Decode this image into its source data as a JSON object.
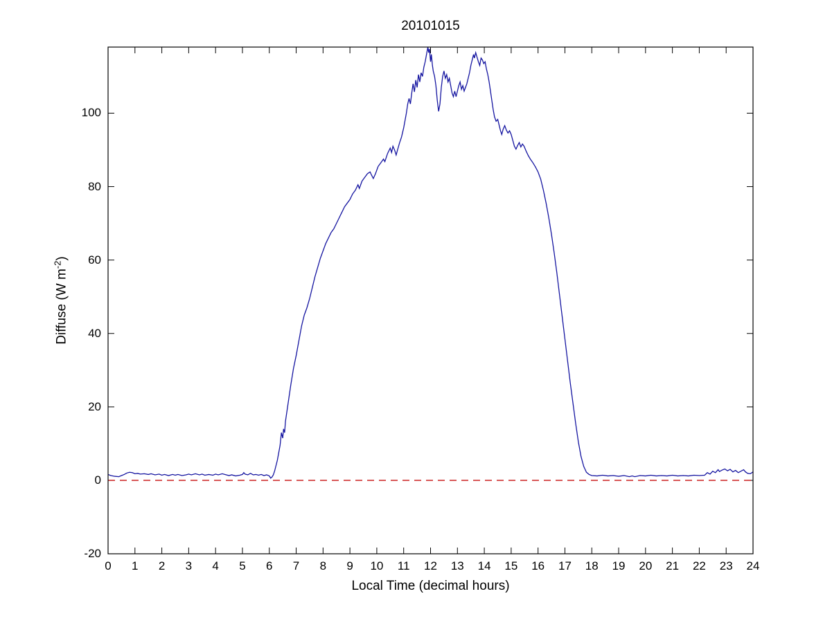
{
  "chart_data": {
    "type": "line",
    "title": "20101015",
    "xlabel": "Local Time (decimal hours)",
    "ylabel": {
      "prefix": "Diffuse (W m",
      "superscript": "-2",
      "suffix": ")"
    },
    "xlim": [
      0,
      24
    ],
    "ylim": [
      -20,
      118
    ],
    "xticks": [
      0,
      1,
      2,
      3,
      4,
      5,
      6,
      7,
      8,
      9,
      10,
      11,
      12,
      13,
      14,
      15,
      16,
      17,
      18,
      19,
      20,
      21,
      22,
      23,
      24
    ],
    "yticks": [
      -20,
      0,
      20,
      40,
      60,
      80,
      100
    ],
    "grid": false,
    "legend": null,
    "colors": {
      "axis": "#000000",
      "line": "#1414a0",
      "reference": "#cc2222"
    },
    "series": [
      {
        "name": "diffuse-irradiance",
        "color": "#1414a0",
        "style": "solid",
        "points": [
          [
            0,
            1.6
          ],
          [
            0.1,
            1.3
          ],
          [
            0.25,
            1.1
          ],
          [
            0.4,
            1.0
          ],
          [
            0.5,
            1.3
          ],
          [
            0.6,
            1.6
          ],
          [
            0.7,
            2.0
          ],
          [
            0.8,
            2.2
          ],
          [
            0.9,
            2.1
          ],
          [
            1.0,
            1.8
          ],
          [
            1.1,
            1.9
          ],
          [
            1.2,
            1.7
          ],
          [
            1.35,
            1.8
          ],
          [
            1.5,
            1.6
          ],
          [
            1.6,
            1.8
          ],
          [
            1.75,
            1.5
          ],
          [
            1.9,
            1.7
          ],
          [
            2.0,
            1.4
          ],
          [
            2.1,
            1.6
          ],
          [
            2.25,
            1.3
          ],
          [
            2.4,
            1.6
          ],
          [
            2.5,
            1.4
          ],
          [
            2.6,
            1.6
          ],
          [
            2.75,
            1.3
          ],
          [
            2.9,
            1.5
          ],
          [
            3.0,
            1.7
          ],
          [
            3.1,
            1.5
          ],
          [
            3.25,
            1.8
          ],
          [
            3.4,
            1.5
          ],
          [
            3.5,
            1.7
          ],
          [
            3.6,
            1.4
          ],
          [
            3.75,
            1.6
          ],
          [
            3.9,
            1.4
          ],
          [
            4.0,
            1.7
          ],
          [
            4.1,
            1.5
          ],
          [
            4.25,
            1.8
          ],
          [
            4.4,
            1.5
          ],
          [
            4.5,
            1.3
          ],
          [
            4.6,
            1.5
          ],
          [
            4.75,
            1.2
          ],
          [
            4.9,
            1.4
          ],
          [
            5.0,
            1.6
          ],
          [
            5.05,
            2.1
          ],
          [
            5.1,
            1.7
          ],
          [
            5.2,
            1.5
          ],
          [
            5.3,
            1.9
          ],
          [
            5.4,
            1.5
          ],
          [
            5.5,
            1.6
          ],
          [
            5.6,
            1.4
          ],
          [
            5.7,
            1.6
          ],
          [
            5.8,
            1.3
          ],
          [
            5.9,
            1.5
          ],
          [
            6.0,
            1.2
          ],
          [
            6.05,
            0.6
          ],
          [
            6.1,
            0.9
          ],
          [
            6.15,
            1.5
          ],
          [
            6.2,
            2.6
          ],
          [
            6.3,
            5.5
          ],
          [
            6.4,
            9.5
          ],
          [
            6.45,
            13
          ],
          [
            6.5,
            11.5
          ],
          [
            6.53,
            14
          ],
          [
            6.57,
            13
          ],
          [
            6.6,
            16
          ],
          [
            6.7,
            21
          ],
          [
            6.8,
            26
          ],
          [
            6.9,
            30.5
          ],
          [
            7.0,
            34
          ],
          [
            7.1,
            38
          ],
          [
            7.2,
            42
          ],
          [
            7.3,
            45
          ],
          [
            7.4,
            47
          ],
          [
            7.5,
            49.5
          ],
          [
            7.6,
            52.5
          ],
          [
            7.7,
            55.5
          ],
          [
            7.8,
            58
          ],
          [
            7.9,
            60.5
          ],
          [
            8.0,
            62.5
          ],
          [
            8.1,
            64.5
          ],
          [
            8.2,
            66
          ],
          [
            8.3,
            67.5
          ],
          [
            8.4,
            68.5
          ],
          [
            8.5,
            70
          ],
          [
            8.6,
            71.5
          ],
          [
            8.7,
            73
          ],
          [
            8.8,
            74.5
          ],
          [
            8.9,
            75.5
          ],
          [
            9.0,
            76.5
          ],
          [
            9.1,
            78
          ],
          [
            9.2,
            79
          ],
          [
            9.3,
            80.5
          ],
          [
            9.35,
            79.5
          ],
          [
            9.45,
            81.5
          ],
          [
            9.55,
            82.5
          ],
          [
            9.65,
            83.5
          ],
          [
            9.75,
            84
          ],
          [
            9.8,
            83.2
          ],
          [
            9.87,
            82.2
          ],
          [
            9.95,
            83.5
          ],
          [
            10.05,
            85.5
          ],
          [
            10.15,
            86.5
          ],
          [
            10.25,
            87.5
          ],
          [
            10.3,
            86.8
          ],
          [
            10.4,
            89
          ],
          [
            10.5,
            90.5
          ],
          [
            10.55,
            89.3
          ],
          [
            10.6,
            91
          ],
          [
            10.67,
            89.8
          ],
          [
            10.72,
            88.6
          ],
          [
            10.78,
            90.2
          ],
          [
            10.85,
            92
          ],
          [
            10.92,
            93.5
          ],
          [
            11.0,
            96
          ],
          [
            11.05,
            98
          ],
          [
            11.1,
            100
          ],
          [
            11.15,
            102.5
          ],
          [
            11.2,
            104
          ],
          [
            11.25,
            102.5
          ],
          [
            11.3,
            105.5
          ],
          [
            11.35,
            108
          ],
          [
            11.4,
            105.8
          ],
          [
            11.45,
            109
          ],
          [
            11.5,
            107
          ],
          [
            11.55,
            110.5
          ],
          [
            11.6,
            108.5
          ],
          [
            11.65,
            111
          ],
          [
            11.7,
            110
          ],
          [
            11.75,
            112.5
          ],
          [
            11.8,
            114
          ],
          [
            11.85,
            116
          ],
          [
            11.9,
            118
          ],
          [
            11.93,
            116.5
          ],
          [
            11.96,
            117.5
          ],
          [
            12.0,
            114
          ],
          [
            12.03,
            116
          ],
          [
            12.07,
            113
          ],
          [
            12.1,
            111.5
          ],
          [
            12.15,
            110
          ],
          [
            12.2,
            107.5
          ],
          [
            12.25,
            103.5
          ],
          [
            12.3,
            100.5
          ],
          [
            12.35,
            102.5
          ],
          [
            12.4,
            107
          ],
          [
            12.45,
            110
          ],
          [
            12.5,
            111.5
          ],
          [
            12.55,
            109.5
          ],
          [
            12.6,
            110.5
          ],
          [
            12.65,
            108.5
          ],
          [
            12.7,
            109.5
          ],
          [
            12.75,
            107.5
          ],
          [
            12.8,
            105.5
          ],
          [
            12.85,
            104.5
          ],
          [
            12.9,
            106
          ],
          [
            12.95,
            104.5
          ],
          [
            13.0,
            106
          ],
          [
            13.05,
            107.5
          ],
          [
            13.1,
            108.5
          ],
          [
            13.15,
            106.5
          ],
          [
            13.2,
            107.5
          ],
          [
            13.25,
            106
          ],
          [
            13.3,
            107
          ],
          [
            13.35,
            108
          ],
          [
            13.4,
            109.5
          ],
          [
            13.45,
            111
          ],
          [
            13.5,
            113
          ],
          [
            13.55,
            114.5
          ],
          [
            13.6,
            116
          ],
          [
            13.63,
            115
          ],
          [
            13.68,
            116.5
          ],
          [
            13.72,
            115.5
          ],
          [
            13.78,
            114
          ],
          [
            13.83,
            113
          ],
          [
            13.88,
            115
          ],
          [
            13.93,
            114.5
          ],
          [
            13.98,
            113.5
          ],
          [
            14.03,
            114
          ],
          [
            14.08,
            112
          ],
          [
            14.13,
            110.5
          ],
          [
            14.18,
            108.5
          ],
          [
            14.23,
            106
          ],
          [
            14.28,
            103.5
          ],
          [
            14.33,
            101
          ],
          [
            14.38,
            99
          ],
          [
            14.44,
            97.8
          ],
          [
            14.5,
            98.3
          ],
          [
            14.55,
            96.8
          ],
          [
            14.6,
            95.3
          ],
          [
            14.65,
            94.2
          ],
          [
            14.7,
            95.6
          ],
          [
            14.76,
            96.6
          ],
          [
            14.82,
            95.4
          ],
          [
            14.88,
            94.6
          ],
          [
            14.94,
            95.2
          ],
          [
            15.0,
            94.2
          ],
          [
            15.06,
            92.6
          ],
          [
            15.12,
            91
          ],
          [
            15.18,
            90.2
          ],
          [
            15.24,
            91.2
          ],
          [
            15.3,
            92
          ],
          [
            15.36,
            90.8
          ],
          [
            15.42,
            91.6
          ],
          [
            15.48,
            91
          ],
          [
            15.56,
            89.6
          ],
          [
            15.64,
            88.4
          ],
          [
            15.72,
            87.4
          ],
          [
            15.8,
            86.6
          ],
          [
            15.9,
            85.4
          ],
          [
            16.0,
            84
          ],
          [
            16.1,
            82
          ],
          [
            16.2,
            79
          ],
          [
            16.3,
            75.5
          ],
          [
            16.4,
            71.5
          ],
          [
            16.5,
            67
          ],
          [
            16.6,
            62
          ],
          [
            16.7,
            56.5
          ],
          [
            16.8,
            50.5
          ],
          [
            16.9,
            44.5
          ],
          [
            17.0,
            38.5
          ],
          [
            17.1,
            32.5
          ],
          [
            17.2,
            26.5
          ],
          [
            17.3,
            21
          ],
          [
            17.4,
            15.5
          ],
          [
            17.5,
            10.5
          ],
          [
            17.6,
            6.5
          ],
          [
            17.7,
            3.8
          ],
          [
            17.8,
            2.2
          ],
          [
            17.9,
            1.6
          ],
          [
            18.0,
            1.3
          ],
          [
            18.2,
            1.2
          ],
          [
            18.4,
            1.4
          ],
          [
            18.6,
            1.2
          ],
          [
            18.8,
            1.3
          ],
          [
            19.0,
            1.1
          ],
          [
            19.2,
            1.3
          ],
          [
            19.4,
            1.0
          ],
          [
            19.5,
            1.2
          ],
          [
            19.6,
            1.0
          ],
          [
            19.8,
            1.3
          ],
          [
            20.0,
            1.2
          ],
          [
            20.2,
            1.4
          ],
          [
            20.4,
            1.2
          ],
          [
            20.6,
            1.3
          ],
          [
            20.8,
            1.2
          ],
          [
            21.0,
            1.4
          ],
          [
            21.2,
            1.2
          ],
          [
            21.4,
            1.3
          ],
          [
            21.6,
            1.2
          ],
          [
            21.8,
            1.4
          ],
          [
            22.0,
            1.3
          ],
          [
            22.2,
            1.4
          ],
          [
            22.3,
            2.1
          ],
          [
            22.4,
            1.7
          ],
          [
            22.5,
            2.5
          ],
          [
            22.6,
            2.1
          ],
          [
            22.7,
            2.9
          ],
          [
            22.75,
            2.4
          ],
          [
            22.85,
            2.8
          ],
          [
            22.95,
            3.1
          ],
          [
            23.05,
            2.6
          ],
          [
            23.15,
            3.0
          ],
          [
            23.25,
            2.3
          ],
          [
            23.35,
            2.7
          ],
          [
            23.45,
            2.1
          ],
          [
            23.55,
            2.5
          ],
          [
            23.65,
            2.9
          ],
          [
            23.72,
            2.3
          ],
          [
            23.8,
            1.9
          ],
          [
            23.9,
            1.8
          ],
          [
            24.0,
            2.3
          ]
        ]
      },
      {
        "name": "zero-reference",
        "color": "#cc2222",
        "style": "dashed",
        "points": [
          [
            0,
            0
          ],
          [
            24,
            0
          ]
        ]
      }
    ]
  }
}
